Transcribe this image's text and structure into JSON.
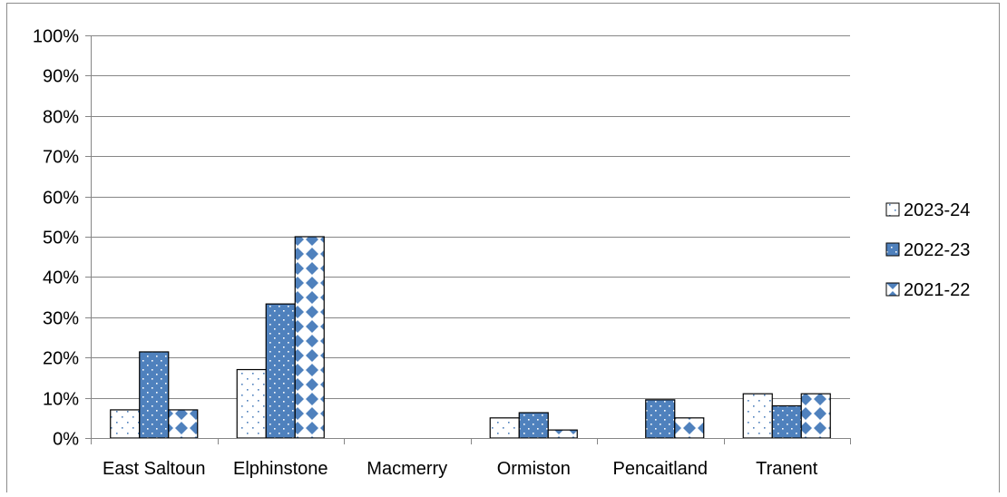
{
  "chart_data": {
    "type": "bar",
    "title": "",
    "xlabel": "",
    "ylabel": "",
    "ylim": [
      0,
      1
    ],
    "ytick_labels": [
      "0%",
      "10%",
      "20%",
      "30%",
      "40%",
      "50%",
      "60%",
      "70%",
      "80%",
      "90%",
      "100%"
    ],
    "grid": true,
    "legend_position": "right",
    "categories": [
      "East Saltoun",
      "Elphinstone",
      "Macmerry",
      "Ormiston",
      "Pencaitland",
      "Tranent"
    ],
    "series": [
      {
        "name": "2023-24",
        "values": [
          0.07,
          0.17,
          0,
          0.05,
          0,
          0.11
        ],
        "pattern": "dots-sparse",
        "color": "#ffffff"
      },
      {
        "name": "2022-23",
        "values": [
          0.214,
          0.333,
          0,
          0.063,
          0.095,
          0.08
        ],
        "pattern": "dots-on-blue",
        "color": "#4f81bd"
      },
      {
        "name": "2021-22",
        "values": [
          0.07,
          0.5,
          0,
          0.02,
          0.05,
          0.11
        ],
        "pattern": "diamonds",
        "color": "#4f81bd"
      }
    ]
  }
}
